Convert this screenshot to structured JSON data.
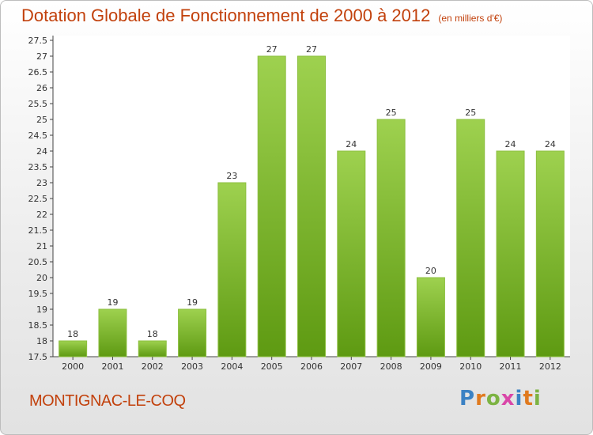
{
  "title": "Dotation Globale de Fonctionnement de 2000 à 2012",
  "unit_note": "(en milliers d'€)",
  "place": "MONTIGNAC-LE-COQ",
  "logo": {
    "text": "Proxiti",
    "letters": [
      "P",
      "r",
      "o",
      "x",
      "i",
      "t",
      "i"
    ]
  },
  "colors": {
    "bar_top": "#9ed14f",
    "bar_bottom": "#5e9a12",
    "title": "#c2410c"
  },
  "chart_data": {
    "type": "bar",
    "categories": [
      "2000",
      "2001",
      "2002",
      "2003",
      "2004",
      "2005",
      "2006",
      "2007",
      "2008",
      "2009",
      "2010",
      "2011",
      "2012"
    ],
    "values": [
      18,
      19,
      18,
      19,
      23,
      27,
      27,
      24,
      25,
      20,
      25,
      24,
      24
    ],
    "data_labels": [
      "18",
      "19",
      "18",
      "19",
      "23",
      "27",
      "27",
      "24",
      "25",
      "20",
      "25",
      "24",
      "24"
    ],
    "ylim": [
      17.5,
      27.5
    ],
    "yticks": [
      "17.5",
      "18",
      "18.5",
      "19",
      "19.5",
      "20",
      "20.5",
      "21",
      "21.5",
      "22",
      "22.5",
      "23",
      "23.5",
      "24",
      "24.5",
      "25",
      "25.5",
      "26",
      "26.5",
      "27",
      "27.5"
    ],
    "grid": false
  }
}
